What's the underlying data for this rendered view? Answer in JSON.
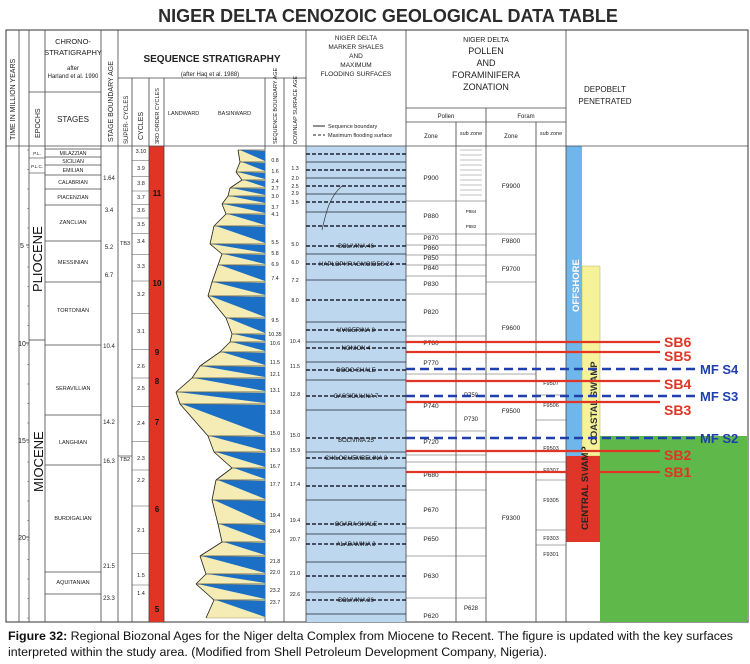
{
  "title": "NIGER DELTA CENOZOIC GEOLOGICAL DATA TABLE",
  "headers": {
    "time": "TIME IN MILLION YEARS",
    "chrono": [
      "CHRONO-",
      "STRATIGRAPHY",
      "after",
      "Harland et al. 1990"
    ],
    "epochs": "EPOCHS",
    "stages": "STAGES",
    "stage_boundary_age": "STAGE BOUNDARY AGE",
    "seq_strat": "SEQUENCE STRATIGRAPHY",
    "seq_strat_sub": "(after Haq et al. 1988)",
    "super_cycles": "SUPER- CYCLES",
    "cycles": "CYCLES",
    "third_order": "3RD ORDER CYCLES",
    "landward": "LANDWARD",
    "basinward": "BASINWARD",
    "seq_boundary_age": "SEQUENCE BOUNDARY AGE",
    "downlap_age": "DOWNLAP SURFACE AGE",
    "marker_shales": [
      "NIGER DELTA",
      "MARKER SHALES",
      "AND",
      "MAXIMUM",
      "FLOODING SURFACES"
    ],
    "legend_seq_boundary": "Sequence boundary",
    "legend_mfs": "Maximum flooding surface",
    "pollen_title": [
      "NIGER DELTA",
      "POLLEN",
      "AND",
      "FORAMINIFERA",
      "ZONATION"
    ],
    "pollen": "Pollen",
    "foram": "Foram",
    "zone": "Zone",
    "subzone": "sub zone",
    "depobelt": [
      "DEPOBELT",
      "PENETRATED"
    ]
  },
  "time_ticks": [
    "5",
    "10",
    "15",
    "20"
  ],
  "epochs": [
    "PLIOCENE",
    "MIOCENE"
  ],
  "epoch_small": [
    "P.L.",
    "P.L.C."
  ],
  "stages": [
    "MILAZZIAN",
    "SICILIAN",
    "EMILIAN",
    "CALABRIAN",
    "PIACENZIAN",
    "ZANCLIAN",
    "MESSINIAN",
    "TORTONIAN",
    "SERAVILLIAN",
    "LANGHIAN",
    "BURDIGALIAN",
    "AQUITANIAN"
  ],
  "stage_ages": [
    "1.64",
    "3.4",
    "5.2",
    "6.7",
    "10.4",
    "14.2",
    "16.3",
    "21.5",
    "23.3"
  ],
  "super_cycles": [
    "TB3",
    "TB2"
  ],
  "third_order_cycles": [
    "3.10",
    "3.9",
    "3.8",
    "3.7",
    "3.6",
    "3.5",
    "3.4",
    "3.3",
    "3.2",
    "3.1",
    "2.6",
    "2.5",
    "2.4",
    "2.3",
    "2.2",
    "2.1",
    "1.5",
    "1.4"
  ],
  "cycle_numbers": [
    "11",
    "10",
    "9",
    "8",
    "7",
    "6",
    "5"
  ],
  "seq_boundary_ages": [
    "0.8",
    "1.6",
    "2.4",
    "2.7",
    "3.0",
    "3.7",
    "4.1",
    "5.5",
    "5.8",
    "6.9",
    "7.4",
    "9.5",
    "10.35",
    "10.6",
    "11.5",
    "12.1",
    "13.1",
    "13.8",
    "15.0",
    "15.9",
    "16.7",
    "17.7",
    "19.4",
    "20.4",
    "21.8",
    "22.0",
    "23.2",
    "23.7"
  ],
  "downlap_ages": [
    "1.3",
    "2.0",
    "2.5",
    "2.9",
    "3.5",
    "5.0",
    "6.0",
    "7.2",
    "8.0",
    "10.4",
    "11.5",
    "12.8",
    "15.0",
    "15.9",
    "17.4",
    "19.4",
    "20.7",
    "21.0",
    "22.6"
  ],
  "marker_shales": [
    "BOLIVINA 46",
    "HAPLOPHRAGMOIDES 24",
    "UVIGERINA 8",
    "NONION 4",
    "DODO SHALE",
    "CASSIDULINA 7",
    "BOLIVINA 25",
    "CHILOGUEMBELINA 3",
    "OGARA SHALE",
    "ALABAMINA 2",
    "BOLIVINA 26"
  ],
  "pollen_zones": [
    "P900",
    "P880",
    "P870",
    "P860",
    "P850",
    "P840",
    "P830",
    "P820",
    "P780",
    "P770",
    "P740",
    "P720",
    "P680",
    "P670",
    "P650",
    "P630",
    "P620"
  ],
  "pollen_subzones": [
    "P884",
    "P882",
    "P750",
    "P730",
    "P628"
  ],
  "foram_zones": [
    "F9900",
    "F9800",
    "F9700",
    "F9600",
    "F9500",
    "F9300"
  ],
  "foram_subzones": [
    "F9507",
    "F9506",
    "F9503",
    "F9307",
    "F9305",
    "F9303",
    "F9301"
  ],
  "depobelts": [
    "OFFSHORE",
    "COASTAL SWAMP",
    "CENTRAL SWAMP"
  ],
  "sb_labels": [
    "SB6",
    "SB5",
    "SB4",
    "SB3",
    "SB2",
    "SB1"
  ],
  "mfs_labels": [
    "MF S4",
    "MF S3",
    "MF S2"
  ],
  "colors": {
    "red": "#e03524",
    "blue": "#1f3fae",
    "yellow": "#f6f29a",
    "depo_red": "#e0362a",
    "depo_green": "#5fb84a",
    "depo_blue": "#6fb7ea",
    "marker_bg": "#bcd7ee",
    "tri_blue": "#1b6fc4",
    "tri_yellow": "#f4ecb4"
  },
  "caption": {
    "label": "Figure 32:",
    "text": " Regional Biozonal Ages for the Niger delta Complex from Miocene to Recent. The figure is updated with the key surfaces interpreted within the study area. (Modified from Shell Petroleum Development Company, Nigeria)."
  }
}
